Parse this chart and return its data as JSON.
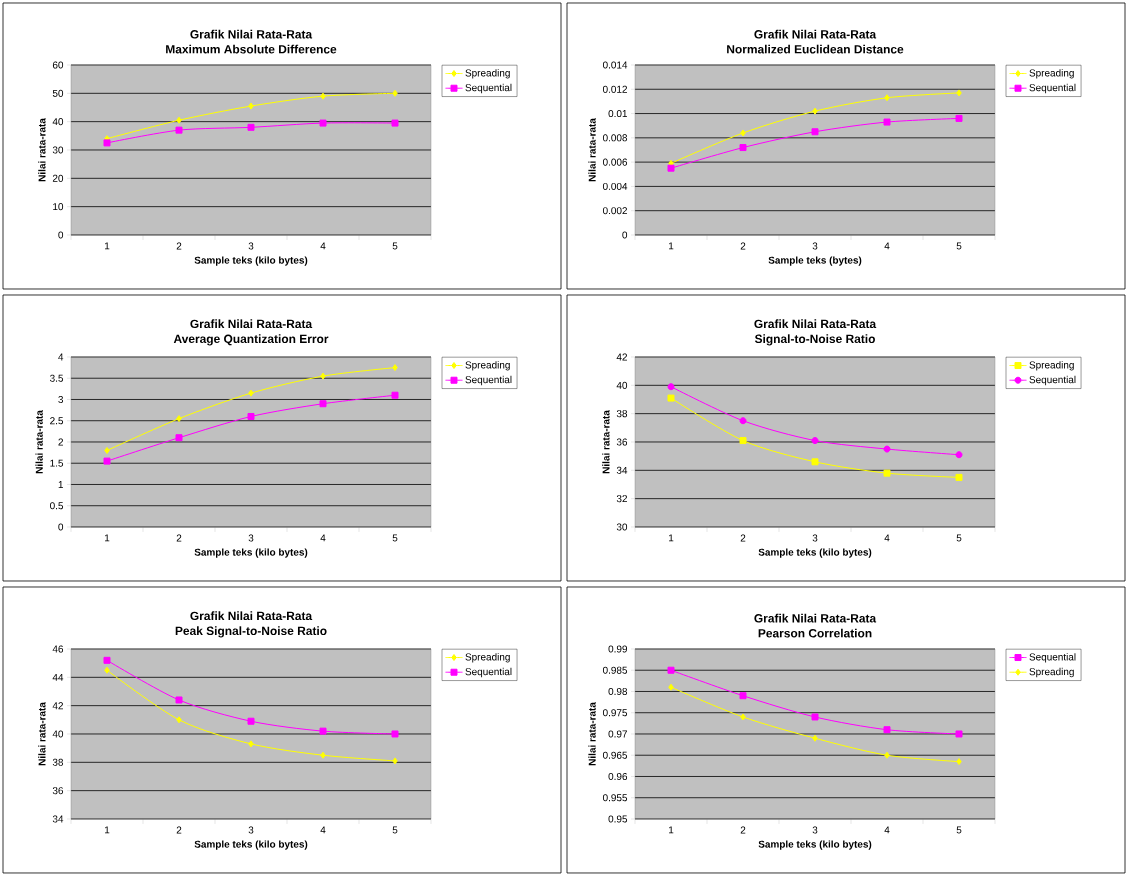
{
  "chart_data": [
    {
      "type": "line",
      "title": "Grafik Nilai Rata-Rata",
      "subtitle": "Maximum Absolute Difference",
      "xlabel": "Sample teks (kilo bytes)",
      "ylabel": "Nilai rata-rata",
      "categories": [
        "1",
        "2",
        "3",
        "4",
        "5"
      ],
      "ylim": [
        0,
        60
      ],
      "yticks": [
        0,
        10,
        20,
        30,
        40,
        50,
        60
      ],
      "grid": "y",
      "legend": "right",
      "series": [
        {
          "name": "Spreading",
          "color": "#ffff00",
          "marker": "diamond",
          "values": [
            34,
            40.5,
            45.5,
            49,
            50
          ]
        },
        {
          "name": "Sequential",
          "color": "#ff00ff",
          "marker": "square",
          "values": [
            32.5,
            37,
            38,
            39.5,
            39.5
          ]
        }
      ]
    },
    {
      "type": "line",
      "title": "Grafik Nilai Rata-Rata",
      "subtitle": "Normalized Euclidean Distance",
      "xlabel": "Sample teks (bytes)",
      "ylabel": "Nilai rata-rata",
      "categories": [
        "1",
        "2",
        "3",
        "4",
        "5"
      ],
      "ylim": [
        0,
        0.014
      ],
      "yticks": [
        0,
        0.002,
        0.004,
        0.006,
        0.008,
        0.01,
        0.012,
        0.014
      ],
      "grid": "y",
      "legend": "right",
      "series": [
        {
          "name": "Spreading",
          "color": "#ffff00",
          "marker": "diamond",
          "values": [
            0.0059,
            0.0084,
            0.0102,
            0.0113,
            0.0117
          ]
        },
        {
          "name": "Sequential",
          "color": "#ff00ff",
          "marker": "square",
          "values": [
            0.0055,
            0.0072,
            0.0085,
            0.0093,
            0.0096
          ]
        }
      ]
    },
    {
      "type": "line",
      "title": "Grafik Nilai Rata-Rata",
      "subtitle": "Average Quantization Error",
      "xlabel": "Sample teks (kilo bytes)",
      "ylabel": "Nilai rata-rata",
      "categories": [
        "1",
        "2",
        "3",
        "4",
        "5"
      ],
      "ylim": [
        0,
        4
      ],
      "yticks": [
        0,
        0.5,
        1,
        1.5,
        2,
        2.5,
        3,
        3.5,
        4
      ],
      "grid": "y",
      "legend": "right",
      "series": [
        {
          "name": "Spreading",
          "color": "#ffff00",
          "marker": "diamond",
          "values": [
            1.8,
            2.55,
            3.15,
            3.55,
            3.75
          ]
        },
        {
          "name": "Sequential",
          "color": "#ff00ff",
          "marker": "square",
          "values": [
            1.55,
            2.1,
            2.6,
            2.9,
            3.1
          ]
        }
      ]
    },
    {
      "type": "line",
      "title": "Grafik Nilai Rata-Rata",
      "subtitle": "Signal-to-Noise Ratio",
      "xlabel": "Sample teks (kilo bytes)",
      "ylabel": "Nilai rata-rata",
      "categories": [
        "1",
        "2",
        "3",
        "4",
        "5"
      ],
      "ylim": [
        30,
        42
      ],
      "yticks": [
        30,
        32,
        34,
        36,
        38,
        40,
        42
      ],
      "grid": "y",
      "legend": "right",
      "series": [
        {
          "name": "Spreading",
          "color": "#ffff00",
          "marker": "square",
          "values": [
            39.1,
            36.1,
            34.6,
            33.8,
            33.5
          ]
        },
        {
          "name": "Sequential",
          "color": "#ff00ff",
          "marker": "circle",
          "values": [
            39.9,
            37.5,
            36.1,
            35.5,
            35.1
          ]
        }
      ]
    },
    {
      "type": "line",
      "title": "Grafik Nilai Rata-Rata",
      "subtitle": "Peak Signal-to-Noise Ratio",
      "xlabel": "Sample teks (kilo bytes)",
      "ylabel": "Nilai rata-rata",
      "categories": [
        "1",
        "2",
        "3",
        "4",
        "5"
      ],
      "ylim": [
        34,
        46
      ],
      "yticks": [
        34,
        36,
        38,
        40,
        42,
        44,
        46
      ],
      "grid": "y",
      "legend": "right",
      "series": [
        {
          "name": "Spreading",
          "color": "#ffff00",
          "marker": "diamond",
          "values": [
            44.5,
            41.0,
            39.3,
            38.5,
            38.1
          ]
        },
        {
          "name": "Sequential",
          "color": "#ff00ff",
          "marker": "square",
          "values": [
            45.2,
            42.4,
            40.9,
            40.2,
            40.0
          ]
        }
      ]
    },
    {
      "type": "line",
      "title": "Grafik Nilai Rata-Rata",
      "subtitle": "Pearson Correlation",
      "xlabel": "Sample teks (kilo bytes)",
      "ylabel": "Nilai rata-rata",
      "categories": [
        "1",
        "2",
        "3",
        "4",
        "5"
      ],
      "ylim": [
        0.95,
        0.99
      ],
      "yticks": [
        0.95,
        0.955,
        0.96,
        0.965,
        0.97,
        0.975,
        0.98,
        0.985,
        0.99
      ],
      "grid": "y",
      "legend": "right",
      "series": [
        {
          "name": "Sequential",
          "color": "#ff00ff",
          "marker": "square",
          "values": [
            0.985,
            0.979,
            0.974,
            0.971,
            0.97
          ]
        },
        {
          "name": "Spreading",
          "color": "#ffff00",
          "marker": "diamond",
          "values": [
            0.981,
            0.974,
            0.969,
            0.965,
            0.9635
          ]
        }
      ]
    }
  ]
}
